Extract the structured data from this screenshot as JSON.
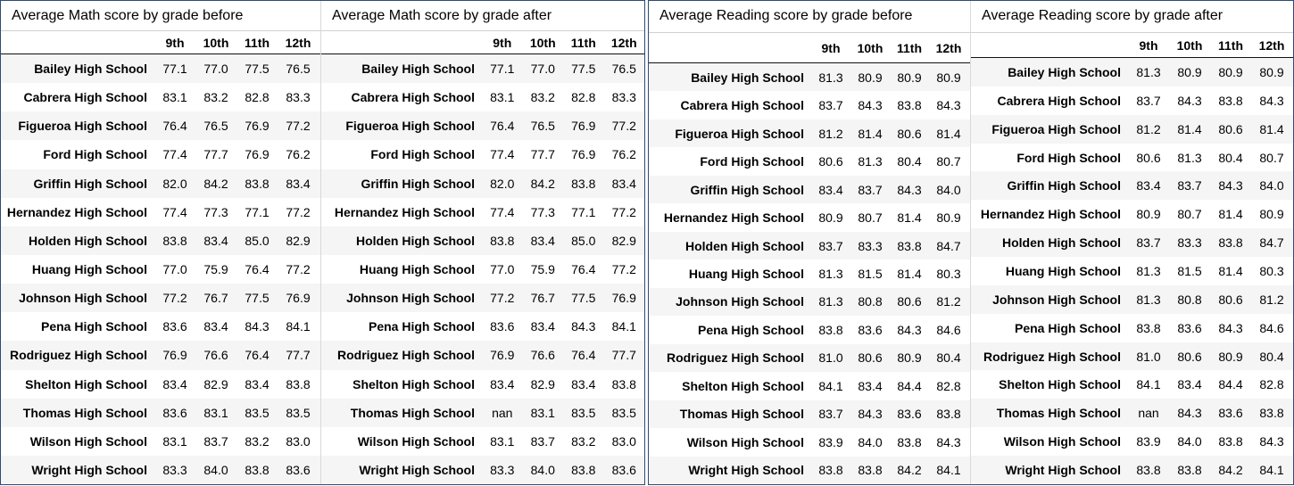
{
  "grades": [
    "9th",
    "10th",
    "11th",
    "12th"
  ],
  "math_before": {
    "title": "Average Math score by grade before",
    "rows": [
      {
        "school": "Bailey High School",
        "values": [
          "77.1",
          "77.0",
          "77.5",
          "76.5"
        ]
      },
      {
        "school": "Cabrera High School",
        "values": [
          "83.1",
          "83.2",
          "82.8",
          "83.3"
        ]
      },
      {
        "school": "Figueroa High School",
        "values": [
          "76.4",
          "76.5",
          "76.9",
          "77.2"
        ]
      },
      {
        "school": "Ford High School",
        "values": [
          "77.4",
          "77.7",
          "76.9",
          "76.2"
        ]
      },
      {
        "school": "Griffin High School",
        "values": [
          "82.0",
          "84.2",
          "83.8",
          "83.4"
        ]
      },
      {
        "school": "Hernandez High School",
        "values": [
          "77.4",
          "77.3",
          "77.1",
          "77.2"
        ]
      },
      {
        "school": "Holden High School",
        "values": [
          "83.8",
          "83.4",
          "85.0",
          "82.9"
        ]
      },
      {
        "school": "Huang High School",
        "values": [
          "77.0",
          "75.9",
          "76.4",
          "77.2"
        ]
      },
      {
        "school": "Johnson High School",
        "values": [
          "77.2",
          "76.7",
          "77.5",
          "76.9"
        ]
      },
      {
        "school": "Pena High School",
        "values": [
          "83.6",
          "83.4",
          "84.3",
          "84.1"
        ]
      },
      {
        "school": "Rodriguez High School",
        "values": [
          "76.9",
          "76.6",
          "76.4",
          "77.7"
        ]
      },
      {
        "school": "Shelton High School",
        "values": [
          "83.4",
          "82.9",
          "83.4",
          "83.8"
        ]
      },
      {
        "school": "Thomas High School",
        "values": [
          "83.6",
          "83.1",
          "83.5",
          "83.5"
        ]
      },
      {
        "school": "Wilson High School",
        "values": [
          "83.1",
          "83.7",
          "83.2",
          "83.0"
        ]
      },
      {
        "school": "Wright High School",
        "values": [
          "83.3",
          "84.0",
          "83.8",
          "83.6"
        ]
      }
    ]
  },
  "math_after": {
    "title": "Average Math score by grade after",
    "rows": [
      {
        "school": "Bailey High School",
        "values": [
          "77.1",
          "77.0",
          "77.5",
          "76.5"
        ]
      },
      {
        "school": "Cabrera High School",
        "values": [
          "83.1",
          "83.2",
          "82.8",
          "83.3"
        ]
      },
      {
        "school": "Figueroa High School",
        "values": [
          "76.4",
          "76.5",
          "76.9",
          "77.2"
        ]
      },
      {
        "school": "Ford High School",
        "values": [
          "77.4",
          "77.7",
          "76.9",
          "76.2"
        ]
      },
      {
        "school": "Griffin High School",
        "values": [
          "82.0",
          "84.2",
          "83.8",
          "83.4"
        ]
      },
      {
        "school": "Hernandez High School",
        "values": [
          "77.4",
          "77.3",
          "77.1",
          "77.2"
        ]
      },
      {
        "school": "Holden High School",
        "values": [
          "83.8",
          "83.4",
          "85.0",
          "82.9"
        ]
      },
      {
        "school": "Huang High School",
        "values": [
          "77.0",
          "75.9",
          "76.4",
          "77.2"
        ]
      },
      {
        "school": "Johnson High School",
        "values": [
          "77.2",
          "76.7",
          "77.5",
          "76.9"
        ]
      },
      {
        "school": "Pena High School",
        "values": [
          "83.6",
          "83.4",
          "84.3",
          "84.1"
        ]
      },
      {
        "school": "Rodriguez High School",
        "values": [
          "76.9",
          "76.6",
          "76.4",
          "77.7"
        ]
      },
      {
        "school": "Shelton High School",
        "values": [
          "83.4",
          "82.9",
          "83.4",
          "83.8"
        ]
      },
      {
        "school": "Thomas High School",
        "values": [
          "nan",
          "83.1",
          "83.5",
          "83.5"
        ]
      },
      {
        "school": "Wilson High School",
        "values": [
          "83.1",
          "83.7",
          "83.2",
          "83.0"
        ]
      },
      {
        "school": "Wright High School",
        "values": [
          "83.3",
          "84.0",
          "83.8",
          "83.6"
        ]
      }
    ]
  },
  "reading_before": {
    "title": "Average Reading score by grade before",
    "rows": [
      {
        "school": "Bailey High School",
        "values": [
          "81.3",
          "80.9",
          "80.9",
          "80.9"
        ]
      },
      {
        "school": "Cabrera High School",
        "values": [
          "83.7",
          "84.3",
          "83.8",
          "84.3"
        ]
      },
      {
        "school": "Figueroa High School",
        "values": [
          "81.2",
          "81.4",
          "80.6",
          "81.4"
        ]
      },
      {
        "school": "Ford High School",
        "values": [
          "80.6",
          "81.3",
          "80.4",
          "80.7"
        ]
      },
      {
        "school": "Griffin High School",
        "values": [
          "83.4",
          "83.7",
          "84.3",
          "84.0"
        ]
      },
      {
        "school": "Hernandez High School",
        "values": [
          "80.9",
          "80.7",
          "81.4",
          "80.9"
        ]
      },
      {
        "school": "Holden High School",
        "values": [
          "83.7",
          "83.3",
          "83.8",
          "84.7"
        ]
      },
      {
        "school": "Huang High School",
        "values": [
          "81.3",
          "81.5",
          "81.4",
          "80.3"
        ]
      },
      {
        "school": "Johnson High School",
        "values": [
          "81.3",
          "80.8",
          "80.6",
          "81.2"
        ]
      },
      {
        "school": "Pena High School",
        "values": [
          "83.8",
          "83.6",
          "84.3",
          "84.6"
        ]
      },
      {
        "school": "Rodriguez High School",
        "values": [
          "81.0",
          "80.6",
          "80.9",
          "80.4"
        ]
      },
      {
        "school": "Shelton High School",
        "values": [
          "84.1",
          "83.4",
          "84.4",
          "82.8"
        ]
      },
      {
        "school": "Thomas High School",
        "values": [
          "83.7",
          "84.3",
          "83.6",
          "83.8"
        ]
      },
      {
        "school": "Wilson High School",
        "values": [
          "83.9",
          "84.0",
          "83.8",
          "84.3"
        ]
      },
      {
        "school": "Wright High School",
        "values": [
          "83.8",
          "83.8",
          "84.2",
          "84.1"
        ]
      }
    ]
  },
  "reading_after": {
    "title": "Average Reading score by grade after",
    "rows": [
      {
        "school": "Bailey High School",
        "values": [
          "81.3",
          "80.9",
          "80.9",
          "80.9"
        ]
      },
      {
        "school": "Cabrera High School",
        "values": [
          "83.7",
          "84.3",
          "83.8",
          "84.3"
        ]
      },
      {
        "school": "Figueroa High School",
        "values": [
          "81.2",
          "81.4",
          "80.6",
          "81.4"
        ]
      },
      {
        "school": "Ford High School",
        "values": [
          "80.6",
          "81.3",
          "80.4",
          "80.7"
        ]
      },
      {
        "school": "Griffin High School",
        "values": [
          "83.4",
          "83.7",
          "84.3",
          "84.0"
        ]
      },
      {
        "school": "Hernandez High School",
        "values": [
          "80.9",
          "80.7",
          "81.4",
          "80.9"
        ]
      },
      {
        "school": "Holden High School",
        "values": [
          "83.7",
          "83.3",
          "83.8",
          "84.7"
        ]
      },
      {
        "school": "Huang High School",
        "values": [
          "81.3",
          "81.5",
          "81.4",
          "80.3"
        ]
      },
      {
        "school": "Johnson High School",
        "values": [
          "81.3",
          "80.8",
          "80.6",
          "81.2"
        ]
      },
      {
        "school": "Pena High School",
        "values": [
          "83.8",
          "83.6",
          "84.3",
          "84.6"
        ]
      },
      {
        "school": "Rodriguez High School",
        "values": [
          "81.0",
          "80.6",
          "80.9",
          "80.4"
        ]
      },
      {
        "school": "Shelton High School",
        "values": [
          "84.1",
          "83.4",
          "84.4",
          "82.8"
        ]
      },
      {
        "school": "Thomas High School",
        "values": [
          "nan",
          "84.3",
          "83.6",
          "83.8"
        ]
      },
      {
        "school": "Wilson High School",
        "values": [
          "83.9",
          "84.0",
          "83.8",
          "84.3"
        ]
      },
      {
        "school": "Wright High School",
        "values": [
          "83.8",
          "83.8",
          "84.2",
          "84.1"
        ]
      }
    ]
  }
}
